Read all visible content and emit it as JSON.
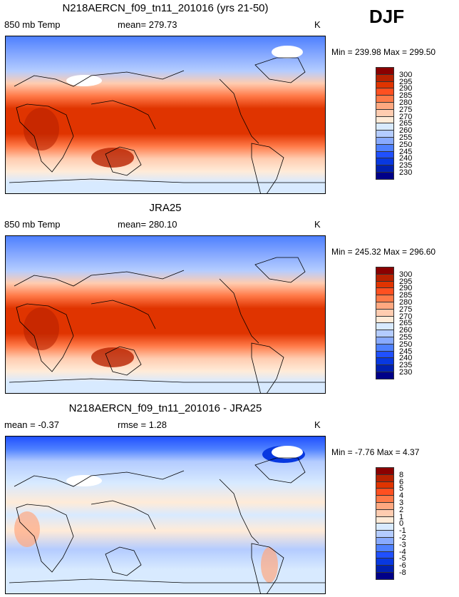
{
  "season": "DJF",
  "panels": [
    {
      "title": "N218AERCN_f09_tn11_201016 (yrs 21-50)",
      "left": "850 mb Temp",
      "center": "mean= 279.73",
      "units": "K",
      "minmax": "Min = 239.98 Max = 299.50",
      "levels": [
        "300",
        "295",
        "290",
        "285",
        "280",
        "275",
        "270",
        "265",
        "260",
        "255",
        "250",
        "245",
        "240",
        "235",
        "230"
      ]
    },
    {
      "title": "JRA25",
      "left": "850 mb Temp",
      "center": "mean= 280.10",
      "units": "K",
      "minmax": "Min = 245.32 Max = 296.60",
      "levels": [
        "300",
        "295",
        "290",
        "285",
        "280",
        "275",
        "270",
        "265",
        "260",
        "255",
        "250",
        "245",
        "240",
        "235",
        "230"
      ]
    },
    {
      "title": "N218AERCN_f09_tn11_201016 - JRA25",
      "left": "mean =  -0.37",
      "center": "rmse =   1.28",
      "units": "K",
      "minmax": "Min =  -7.76 Max =   4.37",
      "levels": [
        "8",
        "6",
        "5",
        "4",
        "3",
        "2",
        "1",
        "0",
        "-1",
        "-2",
        "-3",
        "-4",
        "-5",
        "-6",
        "-8"
      ]
    }
  ],
  "colors": [
    "#8b0000",
    "#b82200",
    "#e03400",
    "#ff5020",
    "#ff7a48",
    "#ffa880",
    "#ffccb0",
    "#ffebd8",
    "#d8eaff",
    "#b4ccff",
    "#88aaff",
    "#4e80ff",
    "#2050ff",
    "#0838e0",
    "#0020b0",
    "#000088"
  ]
}
